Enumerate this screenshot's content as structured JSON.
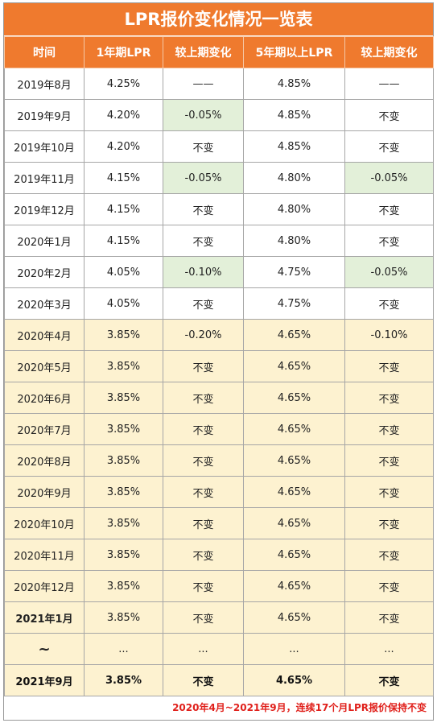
{
  "title": "LPR报价变化情况一览表",
  "headers": [
    "时间",
    "1年期LPR",
    "较上期变化",
    "5年期以上LPR",
    "较上期变化"
  ],
  "rows": [
    {
      "time": "2019年8月",
      "lpr1": "4.25%",
      "chg1": "——",
      "lpr5": "4.85%",
      "chg5": "——",
      "hl": false,
      "c1": false,
      "c5": false,
      "bold": false
    },
    {
      "time": "2019年9月",
      "lpr1": "4.20%",
      "chg1": "-0.05%",
      "lpr5": "4.85%",
      "chg5": "不变",
      "hl": false,
      "c1": true,
      "c5": false,
      "bold": false
    },
    {
      "time": "2019年10月",
      "lpr1": "4.20%",
      "chg1": "不变",
      "lpr5": "4.85%",
      "chg5": "不变",
      "hl": false,
      "c1": false,
      "c5": false,
      "bold": false
    },
    {
      "time": "2019年11月",
      "lpr1": "4.15%",
      "chg1": "-0.05%",
      "lpr5": "4.80%",
      "chg5": "-0.05%",
      "hl": false,
      "c1": true,
      "c5": true,
      "bold": false
    },
    {
      "time": "2019年12月",
      "lpr1": "4.15%",
      "chg1": "不变",
      "lpr5": "4.80%",
      "chg5": "不变",
      "hl": false,
      "c1": false,
      "c5": false,
      "bold": false
    },
    {
      "time": "2020年1月",
      "lpr1": "4.15%",
      "chg1": "不变",
      "lpr5": "4.80%",
      "chg5": "不变",
      "hl": false,
      "c1": false,
      "c5": false,
      "bold": false
    },
    {
      "time": "2020年2月",
      "lpr1": "4.05%",
      "chg1": "-0.10%",
      "lpr5": "4.75%",
      "chg5": "-0.05%",
      "hl": false,
      "c1": true,
      "c5": true,
      "bold": false
    },
    {
      "time": "2020年3月",
      "lpr1": "4.05%",
      "chg1": "不变",
      "lpr5": "4.75%",
      "chg5": "不变",
      "hl": false,
      "c1": false,
      "c5": false,
      "bold": false
    },
    {
      "time": "2020年4月",
      "lpr1": "3.85%",
      "chg1": "-0.20%",
      "lpr5": "4.65%",
      "chg5": "-0.10%",
      "hl": true,
      "c1": false,
      "c5": false,
      "bold": false
    },
    {
      "time": "2020年5月",
      "lpr1": "3.85%",
      "chg1": "不变",
      "lpr5": "4.65%",
      "chg5": "不变",
      "hl": true,
      "c1": false,
      "c5": false,
      "bold": false
    },
    {
      "time": "2020年6月",
      "lpr1": "3.85%",
      "chg1": "不变",
      "lpr5": "4.65%",
      "chg5": "不变",
      "hl": true,
      "c1": false,
      "c5": false,
      "bold": false
    },
    {
      "time": "2020年7月",
      "lpr1": "3.85%",
      "chg1": "不变",
      "lpr5": "4.65%",
      "chg5": "不变",
      "hl": true,
      "c1": false,
      "c5": false,
      "bold": false
    },
    {
      "time": "2020年8月",
      "lpr1": "3.85%",
      "chg1": "不变",
      "lpr5": "4.65%",
      "chg5": "不变",
      "hl": true,
      "c1": false,
      "c5": false,
      "bold": false
    },
    {
      "time": "2020年9月",
      "lpr1": "3.85%",
      "chg1": "不变",
      "lpr5": "4.65%",
      "chg5": "不变",
      "hl": true,
      "c1": false,
      "c5": false,
      "bold": false
    },
    {
      "time": "2020年10月",
      "lpr1": "3.85%",
      "chg1": "不变",
      "lpr5": "4.65%",
      "chg5": "不变",
      "hl": true,
      "c1": false,
      "c5": false,
      "bold": false
    },
    {
      "time": "2020年11月",
      "lpr1": "3.85%",
      "chg1": "不变",
      "lpr5": "4.65%",
      "chg5": "不变",
      "hl": true,
      "c1": false,
      "c5": false,
      "bold": false
    },
    {
      "time": "2020年12月",
      "lpr1": "3.85%",
      "chg1": "不变",
      "lpr5": "4.65%",
      "chg5": "不变",
      "hl": true,
      "c1": false,
      "c5": false,
      "bold": false
    },
    {
      "time": "2021年1月",
      "lpr1": "3.85%",
      "chg1": "不变",
      "lpr5": "4.65%",
      "chg5": "不变",
      "hl": true,
      "c1": false,
      "c5": false,
      "bold": false,
      "boldtime": true
    },
    {
      "time": "~",
      "lpr1": "...",
      "chg1": "...",
      "lpr5": "...",
      "chg5": "...",
      "hl": true,
      "c1": false,
      "c5": false,
      "bold": false,
      "tilde": true
    },
    {
      "time": "2021年9月",
      "lpr1": "3.85%",
      "chg1": "不变",
      "lpr5": "4.65%",
      "chg5": "不变",
      "hl": true,
      "c1": false,
      "c5": false,
      "bold": true
    }
  ],
  "footnote": "2020年4月~2021年9月，连续17个月LPR报价保持不变",
  "colors": {
    "header": "#ef7a2e",
    "highlight": "#fdf2d0",
    "change": "#e3f0d9",
    "footnote": "#e0201b"
  }
}
